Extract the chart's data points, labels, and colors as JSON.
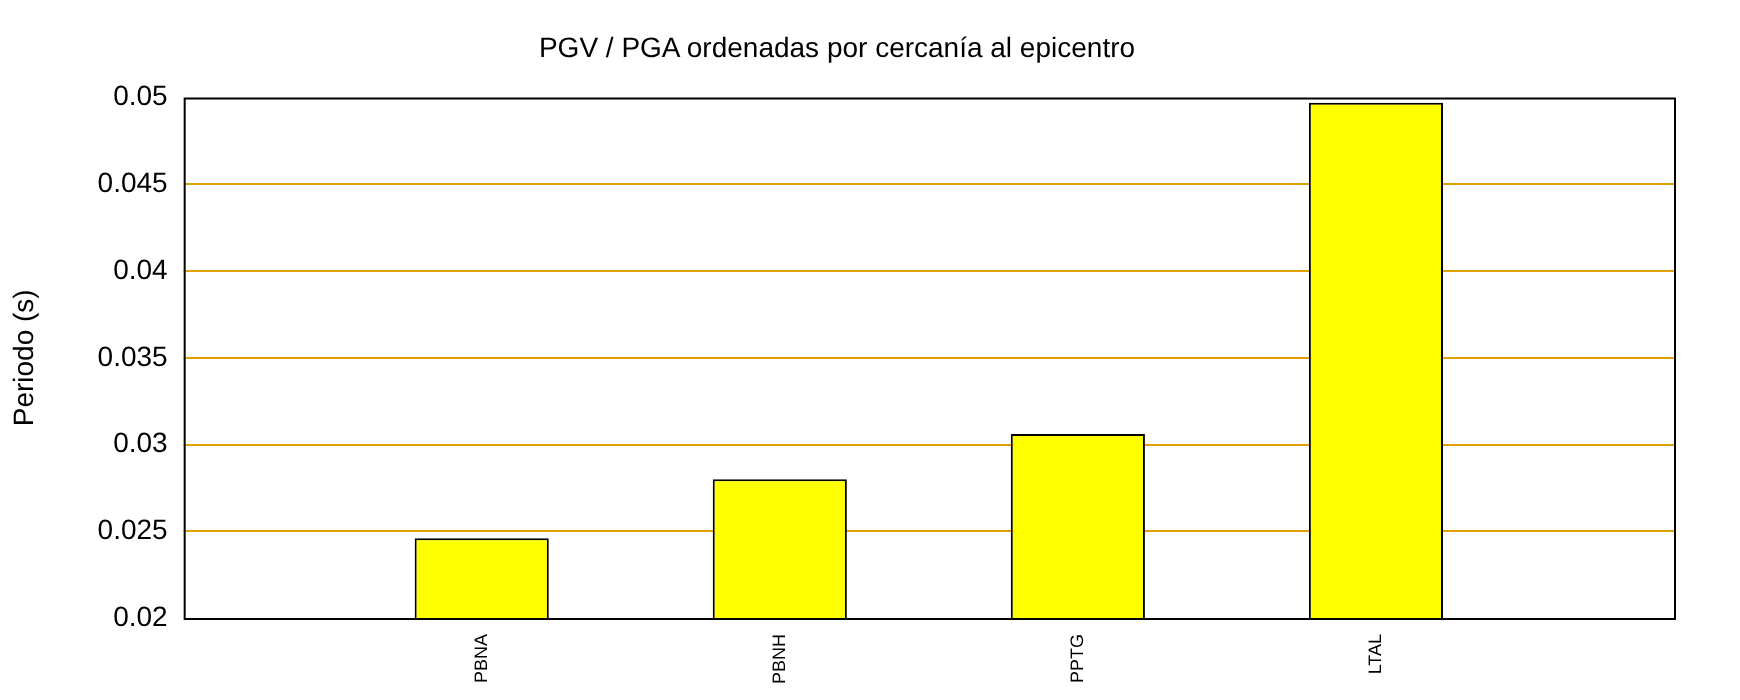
{
  "chart_data": {
    "type": "bar",
    "title": "PGV / PGA ordenadas por cercanía al epicentro",
    "ylabel": "Periodo (s)",
    "categories": [
      null,
      "PBNA",
      "PBNH",
      "PPTG",
      "LTAL",
      null
    ],
    "values": [
      null,
      0.0246,
      0.028,
      0.0306,
      0.0497,
      null
    ],
    "color": "#ffff00",
    "ylim": [
      0.02,
      0.05
    ],
    "yticks": [
      0.02,
      0.025,
      0.03,
      0.035,
      0.04,
      0.045,
      0.05
    ],
    "grid": "y",
    "legend": false
  }
}
